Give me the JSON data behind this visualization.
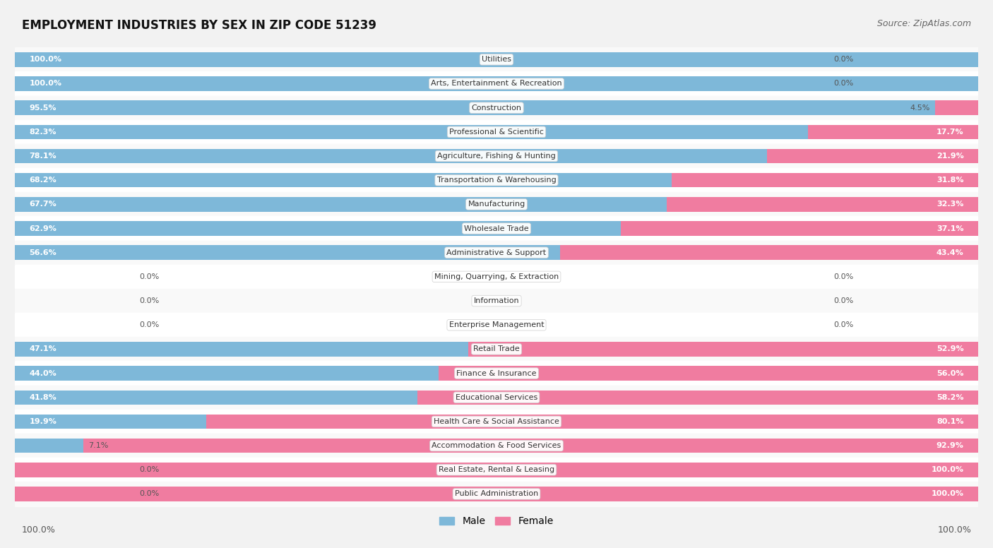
{
  "title": "EMPLOYMENT INDUSTRIES BY SEX IN ZIP CODE 51239",
  "source": "Source: ZipAtlas.com",
  "categories": [
    "Utilities",
    "Arts, Entertainment & Recreation",
    "Construction",
    "Professional & Scientific",
    "Agriculture, Fishing & Hunting",
    "Transportation & Warehousing",
    "Manufacturing",
    "Wholesale Trade",
    "Administrative & Support",
    "Mining, Quarrying, & Extraction",
    "Information",
    "Enterprise Management",
    "Retail Trade",
    "Finance & Insurance",
    "Educational Services",
    "Health Care & Social Assistance",
    "Accommodation & Food Services",
    "Real Estate, Rental & Leasing",
    "Public Administration"
  ],
  "male": [
    100.0,
    100.0,
    95.5,
    82.3,
    78.1,
    68.2,
    67.7,
    62.9,
    56.6,
    0.0,
    0.0,
    0.0,
    47.1,
    44.0,
    41.8,
    19.9,
    7.1,
    0.0,
    0.0
  ],
  "female": [
    0.0,
    0.0,
    4.5,
    17.7,
    21.9,
    31.8,
    32.3,
    37.1,
    43.4,
    0.0,
    0.0,
    0.0,
    52.9,
    56.0,
    58.2,
    80.1,
    92.9,
    100.0,
    100.0
  ],
  "male_color": "#7eb8d9",
  "female_color": "#f07ca0",
  "male_label": "Male",
  "female_label": "Female",
  "bg_color": "#f2f2f2",
  "row_color_even": "#f9f9f9",
  "row_color_odd": "#ffffff",
  "title_fontsize": 12,
  "source_fontsize": 9,
  "label_fontsize": 8,
  "category_fontsize": 8,
  "bar_height": 0.6
}
